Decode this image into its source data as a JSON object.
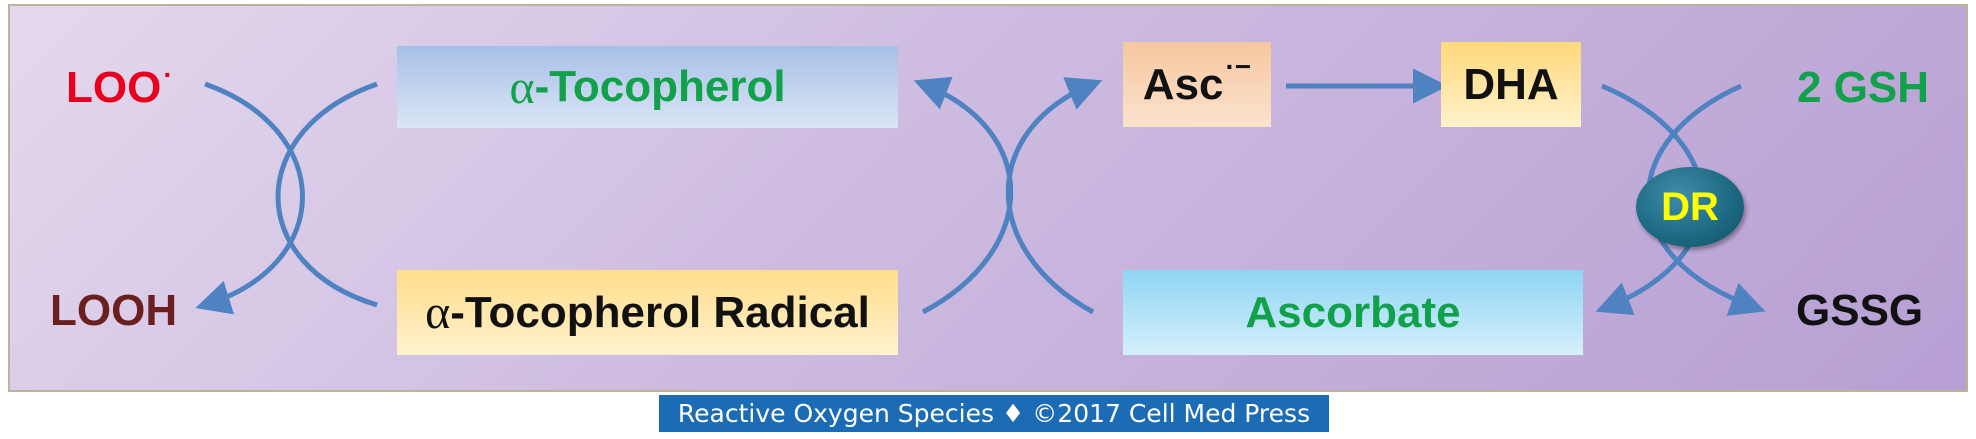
{
  "diagram": {
    "loo_radical": {
      "text": "LOO",
      "superscript": "·"
    },
    "looh": "LOOH",
    "tocopherol": {
      "greek": "α",
      "text": "-Tocopherol"
    },
    "tocopherol_radical": {
      "greek": "α",
      "text": "-Tocopherol Radical"
    },
    "asc_radical": {
      "text": "Asc",
      "superscript": "·−"
    },
    "dha": "DHA",
    "ascorbate": "Ascorbate",
    "gsh": "2 GSH",
    "gssg": "GSSG",
    "enzyme": "DR"
  },
  "footer": "Reactive Oxygen Species ♦ ©2017 Cell Med Press",
  "colors": {
    "red_label": "#e8001c",
    "brown_label": "#6b1f1f",
    "green_label": "#12a14b",
    "black_label": "#111111",
    "arrow": "#4f82c1",
    "enzyme_text": "#ffff00",
    "footer_bg": "#1c6cb5"
  }
}
